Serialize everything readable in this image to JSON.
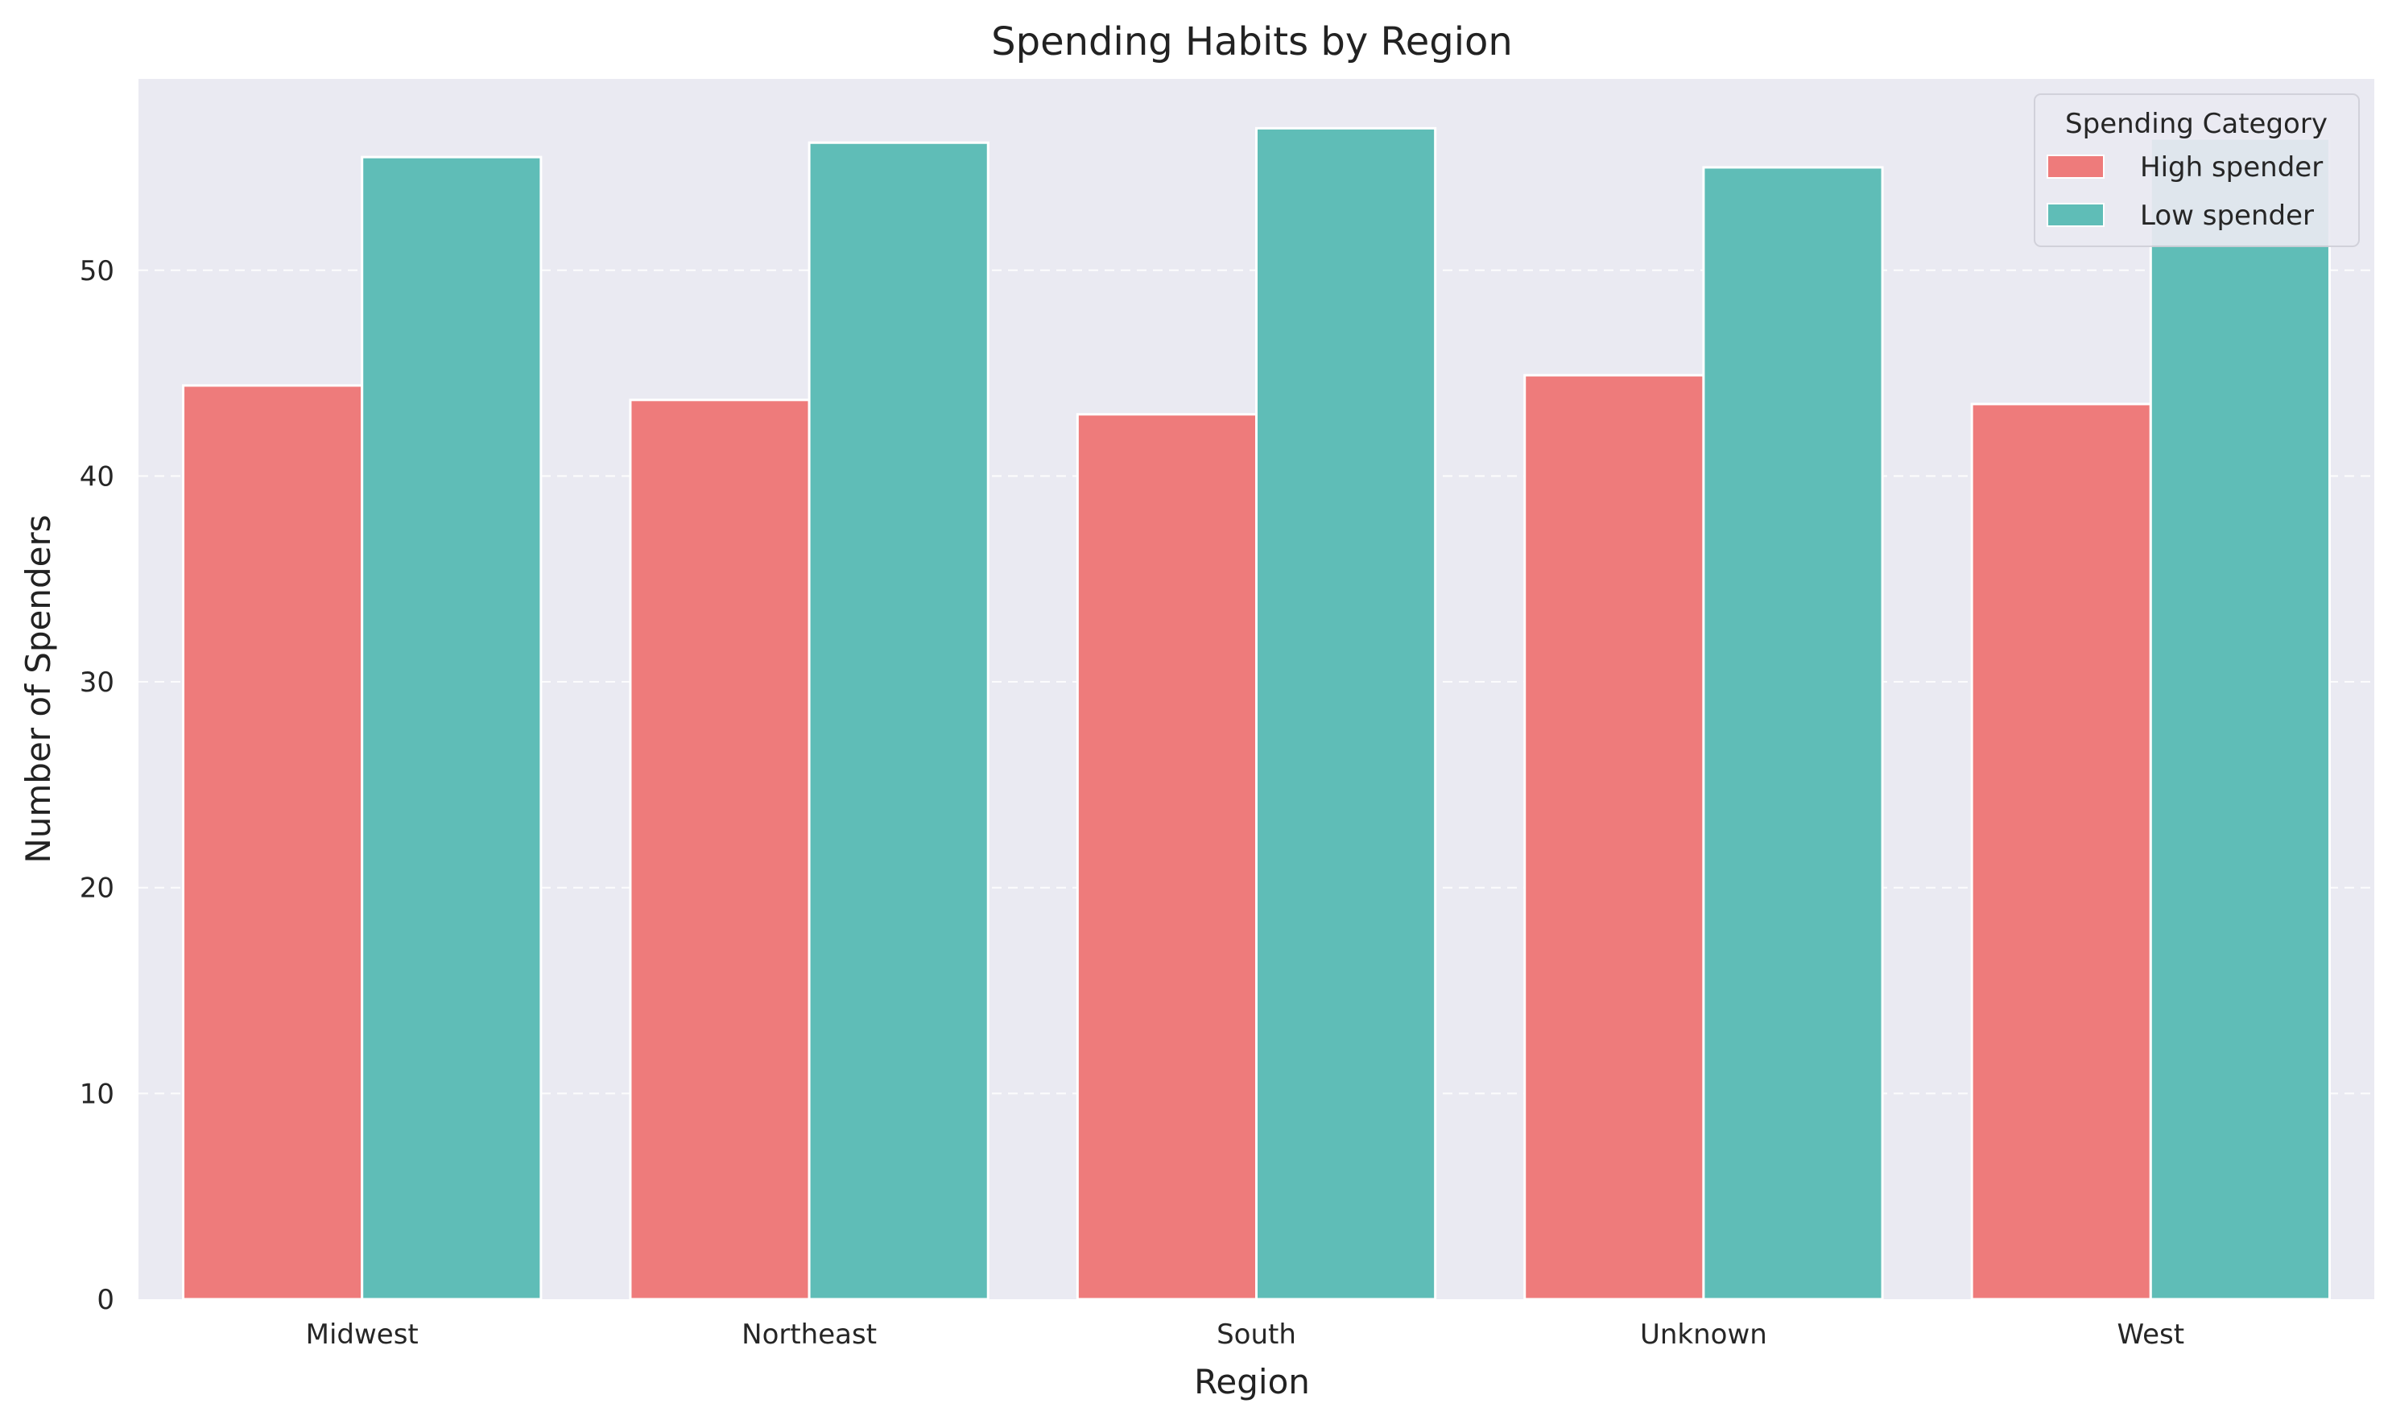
{
  "chart_data": {
    "type": "bar",
    "title": "Spending Habits by Region",
    "xlabel": "Region",
    "ylabel": "Number of Spenders",
    "categories": [
      "Midwest",
      "Northeast",
      "South",
      "Unknown",
      "West"
    ],
    "series": [
      {
        "name": "High spender",
        "color": "#ee7b7b",
        "values": [
          44.4,
          43.7,
          43.0,
          44.9,
          43.5
        ]
      },
      {
        "name": "Low spender",
        "color": "#5fbdb7",
        "values": [
          55.5,
          56.2,
          56.9,
          55.0,
          56.4
        ]
      }
    ],
    "ylim": [
      0,
      59.3
    ],
    "yticks": [
      0,
      10,
      20,
      30,
      40,
      50
    ],
    "grid": true,
    "grid_axis": "y",
    "legend": {
      "title": "Spending Category",
      "placement": "top-right"
    },
    "colors": {
      "plot_background": "#eaeaf2",
      "grid": "#ffffff"
    }
  }
}
